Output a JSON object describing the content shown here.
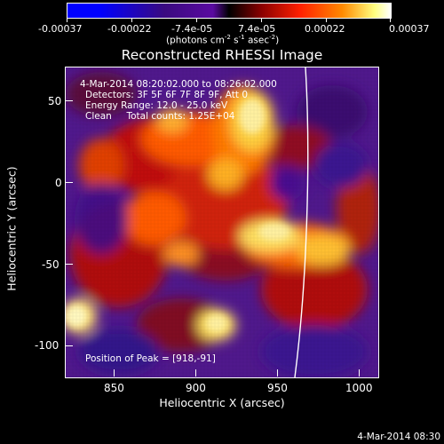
{
  "colorbar": {
    "tick_labels": [
      "-0.00037",
      "-0.00022",
      "-7.4e-05",
      "7.4e-05",
      "0.00022",
      "0.00037"
    ],
    "unit_label": "(photons cm",
    "unit_exp1": "-2",
    "unit_mid": " s",
    "unit_exp2": "-1",
    "unit_end": " asec",
    "unit_exp3": "-2",
    "unit_close": ")",
    "range": [
      -0.00037,
      0.00037
    ]
  },
  "image": {
    "title": "Reconstructed RHESSI Image",
    "time_range": "4-Mar-2014 08:20:02.000 to 08:26:02.000",
    "detectors": "Detectors: 3F 5F 6F 7F 8F 9F, Att 0",
    "energy_range": "Energy Range: 12.0 - 25.0 keV",
    "algorithm": "Clean     Total counts: 1.25E+04",
    "peak": "Position of Peak = [918,-91]"
  },
  "axes": {
    "xlabel": "Heliocentric X (arcsec)",
    "ylabel": "Heliocentric Y (arcsec)",
    "x_ticks": [
      "850",
      "900",
      "950",
      "1000"
    ],
    "y_ticks": [
      "50",
      "0",
      "-50",
      "-100"
    ],
    "xlim": [
      820,
      1010
    ],
    "ylim": [
      -120,
      70
    ]
  },
  "footer": {
    "timestamp": "4-Mar-2014 08:30"
  },
  "colors": {
    "background": "#000000",
    "limb": "#ffffff"
  }
}
